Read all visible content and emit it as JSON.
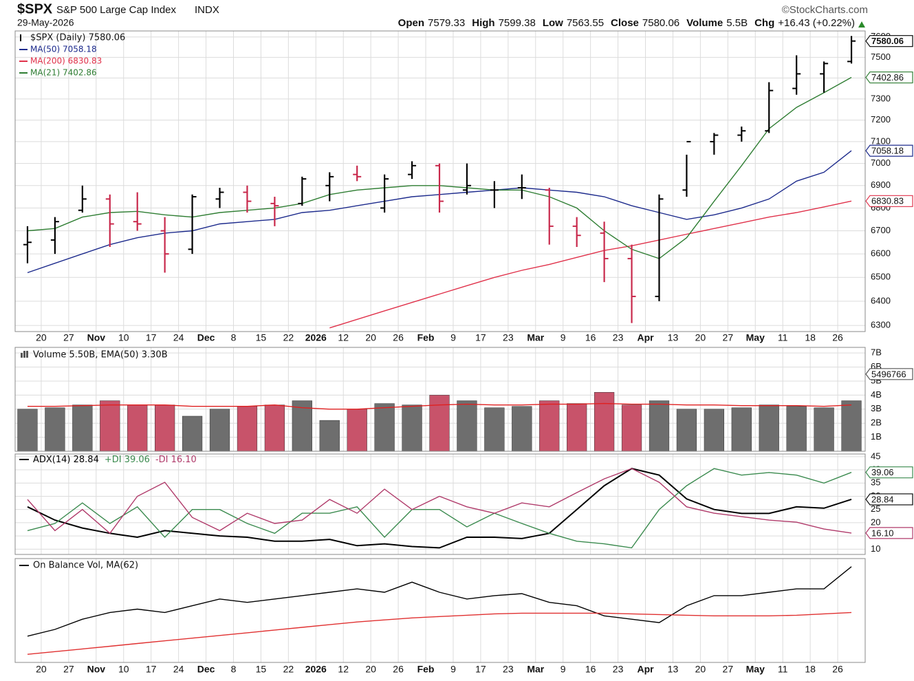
{
  "chart_data": [
    {
      "type": "ohlc",
      "title": "$SPX",
      "subtitle": "S&P 500 Large Cap Index",
      "exchange": "INDX",
      "credit": "©StockCharts.com",
      "date": "29-May-2026",
      "quote": [
        {
          "label": "Open",
          "value": 7579.33
        },
        {
          "label": "High",
          "value": 7599.38
        },
        {
          "label": "Low",
          "value": 7563.55
        },
        {
          "label": "Close",
          "value": 7580.06
        },
        {
          "label": "Volume",
          "value": "5.5B"
        },
        {
          "label": "Chg",
          "value": "+16.43 (+0.22%)"
        }
      ],
      "categories": [
        null,
        "20",
        "27",
        "Nov",
        "10",
        "17",
        "24",
        "Dec",
        "8",
        "15",
        "22",
        "2026",
        "12",
        "20",
        "26",
        "Feb",
        "9",
        "17",
        "23",
        "Mar",
        "9",
        "16",
        "23",
        "Apr",
        "13",
        "20",
        "27",
        "May",
        "11",
        "18",
        "26"
      ],
      "ohlc": {
        "name": "$SPX (Daily) 7580.06",
        "color": "#000000",
        "down_color": "#c8284b",
        "last": 7580.06,
        "open": [
          6640,
          6660,
          6790,
          6840,
          6740,
          6700,
          6620,
          6840,
          6870,
          6820,
          6820,
          6900,
          6950,
          6800,
          6950,
          6990,
          6880,
          6880,
          6890,
          6880,
          6720,
          6690,
          6580,
          6420,
          6880,
          7100,
          7130,
          7150,
          7350,
          7420,
          7480
        ],
        "high": [
          6720,
          6760,
          6900,
          6860,
          6870,
          6760,
          6860,
          6890,
          6900,
          6850,
          6940,
          6960,
          6990,
          6950,
          7010,
          7000,
          7000,
          6920,
          6950,
          6890,
          6760,
          6740,
          6640,
          6860,
          7040,
          7140,
          7170,
          7380,
          7510,
          7480,
          7605
        ],
        "low": [
          6560,
          6600,
          6780,
          6630,
          6700,
          6520,
          6600,
          6800,
          6780,
          6720,
          6810,
          6830,
          6920,
          6780,
          6930,
          6780,
          6860,
          6800,
          6840,
          6640,
          6630,
          6480,
          6310,
          6400,
          6850,
          7040,
          7100,
          7140,
          7320,
          7330,
          7470
        ],
        "close": [
          6650,
          6740,
          6840,
          6730,
          6730,
          6600,
          6850,
          6870,
          6830,
          6810,
          6930,
          6940,
          6940,
          6930,
          6990,
          6830,
          6900,
          6880,
          6890,
          6720,
          6680,
          6580,
          6420,
          6840,
          7100,
          7130,
          7150,
          7340,
          7420,
          7470,
          7580.06
        ]
      },
      "series": [
        {
          "name": "MA(50) 7058.18",
          "color": "#1c2a8c",
          "last": 7058.18,
          "values": [
            6520,
            6560,
            6600,
            6640,
            6670,
            6690,
            6700,
            6730,
            6740,
            6750,
            6780,
            6790,
            6810,
            6830,
            6850,
            6860,
            6870,
            6880,
            6890,
            6880,
            6870,
            6850,
            6810,
            6780,
            6750,
            6770,
            6800,
            6840,
            6920,
            6960,
            7058.18
          ]
        },
        {
          "name": "MA(200) 6830.83",
          "color": "#e0314a",
          "last": 6830.83,
          "values": [
            null,
            null,
            null,
            null,
            null,
            null,
            null,
            null,
            null,
            null,
            null,
            6290,
            6325,
            6360,
            6395,
            6430,
            6465,
            6500,
            6530,
            6555,
            6585,
            6615,
            6635,
            6660,
            6685,
            6710,
            6735,
            6760,
            6780,
            6805,
            6830.83
          ]
        },
        {
          "name": "MA(21) 7402.86",
          "color": "#2e7d32",
          "last": 7402.86,
          "values": [
            6700,
            6710,
            6760,
            6780,
            6785,
            6770,
            6760,
            6780,
            6790,
            6800,
            6820,
            6860,
            6880,
            6890,
            6900,
            6900,
            6890,
            6880,
            6880,
            6850,
            6800,
            6700,
            6620,
            6580,
            6670,
            6830,
            6990,
            7160,
            7260,
            7330,
            7402.86
          ]
        }
      ],
      "log": true,
      "ylim": [
        6275,
        7630
      ],
      "yticks": [
        6300,
        6400,
        6500,
        6600,
        6700,
        6800,
        6900,
        7000,
        7100,
        7200,
        7300,
        7400,
        7500,
        7600
      ],
      "grid": true
    },
    {
      "type": "bar",
      "title": "Volume 5.50B, EMA(50) 3.30B",
      "up_color": "#6e6e6e",
      "down_color": "#c8536a",
      "last": 5.496766,
      "last_label": "5496766",
      "values": [
        3.0,
        3.1,
        3.3,
        3.6,
        3.3,
        3.3,
        2.5,
        3.0,
        3.2,
        3.3,
        3.6,
        2.2,
        3.0,
        3.4,
        3.3,
        4.0,
        3.6,
        3.1,
        3.2,
        3.6,
        3.4,
        4.2,
        3.3,
        3.6,
        3.0,
        3.0,
        3.1,
        3.3,
        3.2,
        3.1,
        3.6
      ],
      "ema": {
        "color": "#e02020",
        "values": [
          3.2,
          3.2,
          3.25,
          3.3,
          3.3,
          3.3,
          3.2,
          3.2,
          3.2,
          3.3,
          3.1,
          3.0,
          3.0,
          3.1,
          3.2,
          3.3,
          3.35,
          3.3,
          3.3,
          3.35,
          3.35,
          3.4,
          3.35,
          3.35,
          3.3,
          3.3,
          3.25,
          3.25,
          3.25,
          3.2,
          3.3
        ]
      },
      "ylim": [
        0,
        7.4
      ],
      "yticks": [
        {
          "value": 1,
          "label": "1B"
        },
        {
          "value": 2,
          "label": "2B"
        },
        {
          "value": 3,
          "label": "3B"
        },
        {
          "value": 4,
          "label": "4B"
        },
        {
          "value": 5,
          "label": "5B"
        },
        {
          "value": 6,
          "label": "6B"
        },
        {
          "value": 7,
          "label": "7B"
        }
      ],
      "grid": true
    },
    {
      "type": "line",
      "series": [
        {
          "name": "ADX(14) 28.84",
          "color": "#000000",
          "last": 28.84,
          "values": [
            26,
            21,
            18,
            16,
            14.5,
            17,
            16,
            15,
            14.5,
            13,
            13,
            13.7,
            11.3,
            12,
            11,
            10.5,
            14.5,
            14.5,
            14,
            16,
            25,
            34,
            40.5,
            38,
            29,
            25,
            23.5,
            23.5,
            26,
            25.5,
            28.84
          ]
        },
        {
          "name": "+DI 39.06",
          "color": "#3a8a4e",
          "last": 39.06,
          "values": [
            17,
            19.7,
            27.5,
            19.7,
            26,
            14.5,
            25,
            25,
            19.7,
            16,
            23.6,
            23.6,
            26,
            14.5,
            25,
            25,
            18.4,
            23.6,
            19.7,
            16,
            13,
            12,
            10.5,
            25,
            34,
            40.5,
            38,
            39,
            38,
            35,
            39.06
          ]
        },
        {
          "name": "-DI 16.10",
          "color": "#b03a6a",
          "last": 16.1,
          "last_label": "16.10",
          "values": [
            28.8,
            17,
            25,
            16,
            30,
            35.3,
            22,
            17,
            23.6,
            19.7,
            21,
            28.8,
            23.6,
            32.7,
            25,
            30,
            26,
            23.6,
            27.5,
            26,
            31.4,
            36.6,
            40.5,
            35.3,
            26,
            23.6,
            22.3,
            21,
            20.2,
            17.6,
            16.1
          ]
        }
      ],
      "ylim": [
        8,
        46
      ],
      "yticks": [
        10,
        15,
        20,
        25,
        30,
        35,
        40,
        45
      ],
      "grid": true
    },
    {
      "type": "line",
      "title": "On Balance Vol, MA(62)",
      "series": [
        {
          "color": "#000000",
          "values": [
            17.5,
            22.5,
            30,
            35,
            37.5,
            35,
            40,
            45,
            42.5,
            45,
            47.5,
            50,
            52.5,
            50,
            57.5,
            50,
            45,
            47.5,
            49,
            42.5,
            40,
            32.5,
            30,
            27.5,
            40,
            47.5,
            47.5,
            50,
            52.5,
            52.5,
            69
          ]
        },
        {
          "color": "#e03030",
          "values": [
            4,
            6,
            8,
            10,
            12,
            14,
            16,
            18,
            20,
            22,
            24,
            26,
            28,
            29.5,
            31,
            32,
            33,
            34,
            34.5,
            34.5,
            34.5,
            34.5,
            34,
            33.5,
            33,
            32.5,
            32.5,
            32.5,
            33,
            34,
            35
          ]
        }
      ],
      "ylim": [
        -2,
        75
      ],
      "grid": true
    }
  ]
}
